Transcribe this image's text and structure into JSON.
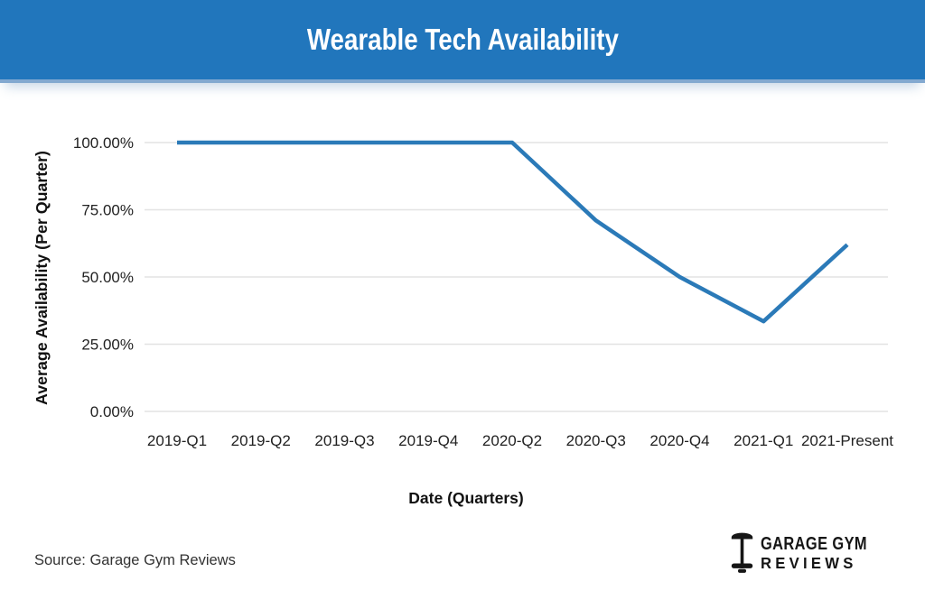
{
  "header": {
    "title": "Wearable Tech Availability"
  },
  "chart_data": {
    "type": "line",
    "title": "Wearable Tech Availability",
    "xlabel": "Date (Quarters)",
    "ylabel": "Average Availability (Per Quarter)",
    "categories": [
      "2019-Q1",
      "2019-Q2",
      "2019-Q3",
      "2019-Q4",
      "2020-Q2",
      "2020-Q3",
      "2020-Q4",
      "2021-Q1",
      "2021-Present"
    ],
    "series": [
      {
        "name": "Average Availability (Per Quarter)",
        "values": [
          100,
          100,
          100,
          100,
          100,
          71,
          50,
          33.5,
          62
        ]
      }
    ],
    "ylim": [
      0,
      100
    ],
    "yticks": [
      {
        "label": "100.00%",
        "value": 100
      },
      {
        "label": "75.00%",
        "value": 75
      },
      {
        "label": "50.00%",
        "value": 50
      },
      {
        "label": "25.00%",
        "value": 25
      },
      {
        "label": "0.00%",
        "value": 0
      }
    ],
    "grid": "horizontal",
    "legend": "none",
    "line_color": "#2b7ab8",
    "grid_color": "#e3e3e3"
  },
  "source": {
    "text": "Source: Garage Gym Reviews"
  },
  "logo": {
    "icon": "dumbbell-icon",
    "line1": "GARAGE GYM",
    "line2": "REVIEWS",
    "color": "#161616"
  },
  "colors": {
    "header_bg": "#2176bc",
    "header_edge": "#83a9d0",
    "title_text": "#ffffff",
    "axis_text": "#222222"
  }
}
